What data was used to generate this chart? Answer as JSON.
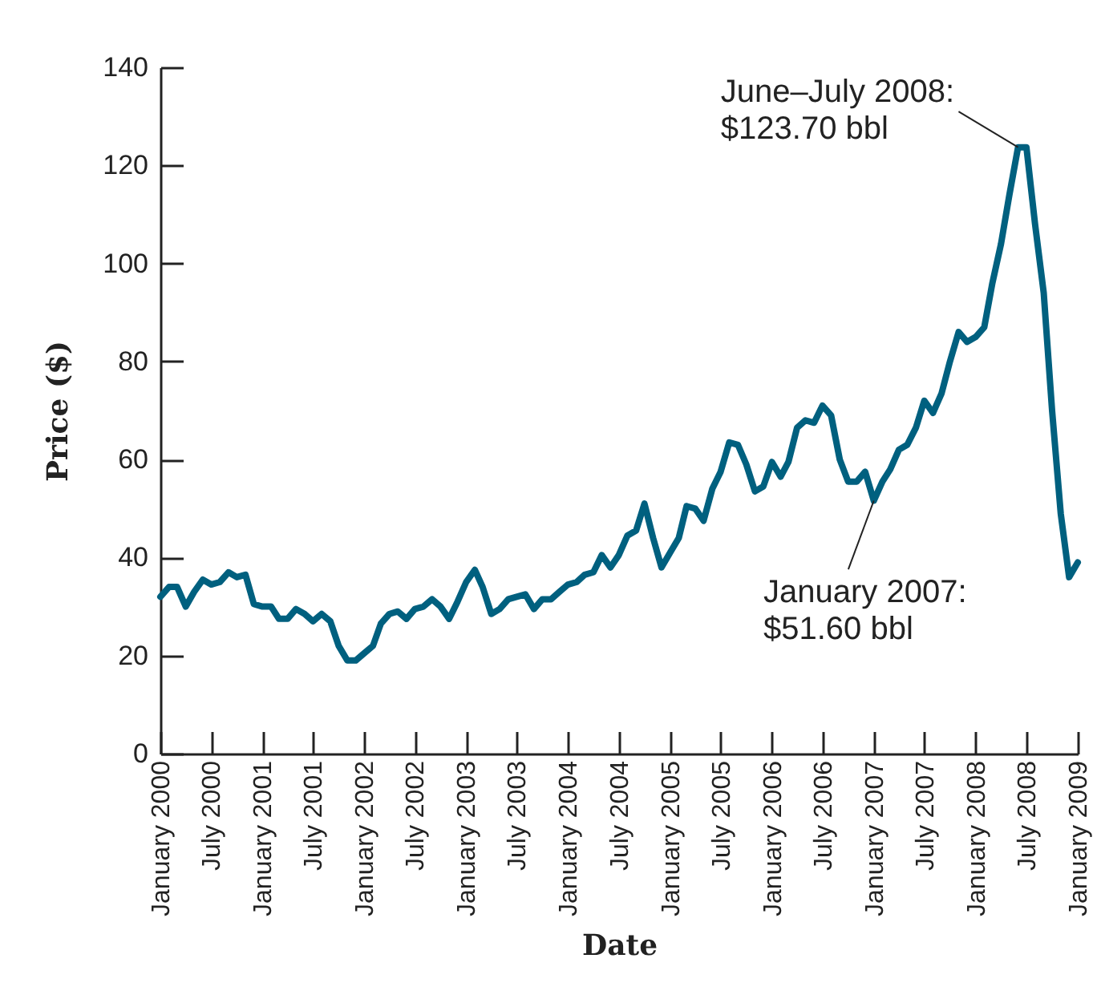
{
  "chart_data": {
    "type": "line",
    "xlabel": "Date",
    "ylabel": "Price ($)",
    "x": [
      "2000-01",
      "2000-02",
      "2000-03",
      "2000-04",
      "2000-05",
      "2000-06",
      "2000-07",
      "2000-08",
      "2000-09",
      "2000-10",
      "2000-11",
      "2000-12",
      "2001-01",
      "2001-02",
      "2001-03",
      "2001-04",
      "2001-05",
      "2001-06",
      "2001-07",
      "2001-08",
      "2001-09",
      "2001-10",
      "2001-11",
      "2001-12",
      "2002-01",
      "2002-02",
      "2002-03",
      "2002-04",
      "2002-05",
      "2002-06",
      "2002-07",
      "2002-08",
      "2002-09",
      "2002-10",
      "2002-11",
      "2002-12",
      "2003-01",
      "2003-02",
      "2003-03",
      "2003-04",
      "2003-05",
      "2003-06",
      "2003-07",
      "2003-08",
      "2003-09",
      "2003-10",
      "2003-11",
      "2003-12",
      "2004-01",
      "2004-02",
      "2004-03",
      "2004-04",
      "2004-05",
      "2004-06",
      "2004-07",
      "2004-08",
      "2004-09",
      "2004-10",
      "2004-11",
      "2004-12",
      "2005-01",
      "2005-02",
      "2005-03",
      "2005-04",
      "2005-05",
      "2005-06",
      "2005-07",
      "2005-08",
      "2005-09",
      "2005-10",
      "2005-11",
      "2005-12",
      "2006-01",
      "2006-02",
      "2006-03",
      "2006-04",
      "2006-05",
      "2006-06",
      "2006-07",
      "2006-08",
      "2006-09",
      "2006-10",
      "2006-11",
      "2006-12",
      "2007-01",
      "2007-02",
      "2007-03",
      "2007-04",
      "2007-05",
      "2007-06",
      "2007-07",
      "2007-08",
      "2007-09",
      "2007-10",
      "2007-11",
      "2007-12",
      "2008-01",
      "2008-02",
      "2008-03",
      "2008-04",
      "2008-05",
      "2008-06",
      "2008-07",
      "2008-08",
      "2008-09",
      "2008-10",
      "2008-11",
      "2008-12",
      "2009-01"
    ],
    "series": [
      {
        "color": "#00607f",
        "values": [
          32,
          34,
          34,
          30,
          33,
          35.5,
          34.5,
          35,
          37,
          36,
          36.5,
          30.5,
          30,
          30,
          27.5,
          27.5,
          29.5,
          28.5,
          27,
          28.5,
          27,
          22,
          19,
          19,
          20.5,
          22,
          26.5,
          28.5,
          29,
          27.5,
          29.5,
          30,
          31.5,
          30,
          27.5,
          31,
          35,
          37.5,
          34,
          28.5,
          29.5,
          31.5,
          32,
          32.5,
          29.5,
          31.5,
          31.5,
          33,
          34.5,
          35,
          36.5,
          37,
          40.5,
          38,
          40.5,
          44.5,
          45.5,
          51,
          44,
          38,
          41,
          44,
          50.5,
          50,
          47.5,
          54,
          57.5,
          63.5,
          63,
          59,
          53.5,
          54.5,
          59.5,
          56.5,
          59.5,
          66.5,
          68,
          67.5,
          71,
          69,
          60,
          55.5,
          55.5,
          57.5,
          51.6,
          55.5,
          58,
          62,
          63,
          66.5,
          72,
          69.5,
          73.5,
          80,
          86,
          84,
          85,
          87,
          96,
          104,
          114,
          123.7,
          123.7,
          108,
          94,
          70,
          49,
          36,
          39
        ]
      }
    ],
    "xlim": [
      "2000-01",
      "2009-01"
    ],
    "xticks": [
      {
        "value": "2000-01",
        "label": "January 2000"
      },
      {
        "value": "2000-07",
        "label": "July 2000"
      },
      {
        "value": "2001-01",
        "label": "January 2001"
      },
      {
        "value": "2001-07",
        "label": "July 2001"
      },
      {
        "value": "2002-01",
        "label": "January 2002"
      },
      {
        "value": "2002-07",
        "label": "July 2002"
      },
      {
        "value": "2003-01",
        "label": "January 2003"
      },
      {
        "value": "2003-07",
        "label": "July 2003"
      },
      {
        "value": "2004-01",
        "label": "January 2004"
      },
      {
        "value": "2004-07",
        "label": "July 2004"
      },
      {
        "value": "2005-01",
        "label": "January 2005"
      },
      {
        "value": "2005-07",
        "label": "July 2005"
      },
      {
        "value": "2006-01",
        "label": "January 2006"
      },
      {
        "value": "2006-07",
        "label": "July 2006"
      },
      {
        "value": "2007-01",
        "label": "January 2007"
      },
      {
        "value": "2007-07",
        "label": "July 2007"
      },
      {
        "value": "2008-01",
        "label": "January 2008"
      },
      {
        "value": "2008-07",
        "label": "July 2008"
      },
      {
        "value": "2009-01",
        "label": "January 2009"
      }
    ],
    "ylim": [
      0,
      140
    ],
    "yticks": [
      0,
      20,
      40,
      60,
      80,
      100,
      120,
      140
    ],
    "annotations": [
      {
        "text": "June–July 2008:\n$123.70 bbl",
        "x": "2008-06",
        "y": 123.7
      },
      {
        "text": "January 2007:\n$51.60 bbl",
        "x": "2007-01",
        "y": 51.6
      }
    ],
    "grid": false,
    "marker": "none",
    "line_style": "solid"
  }
}
